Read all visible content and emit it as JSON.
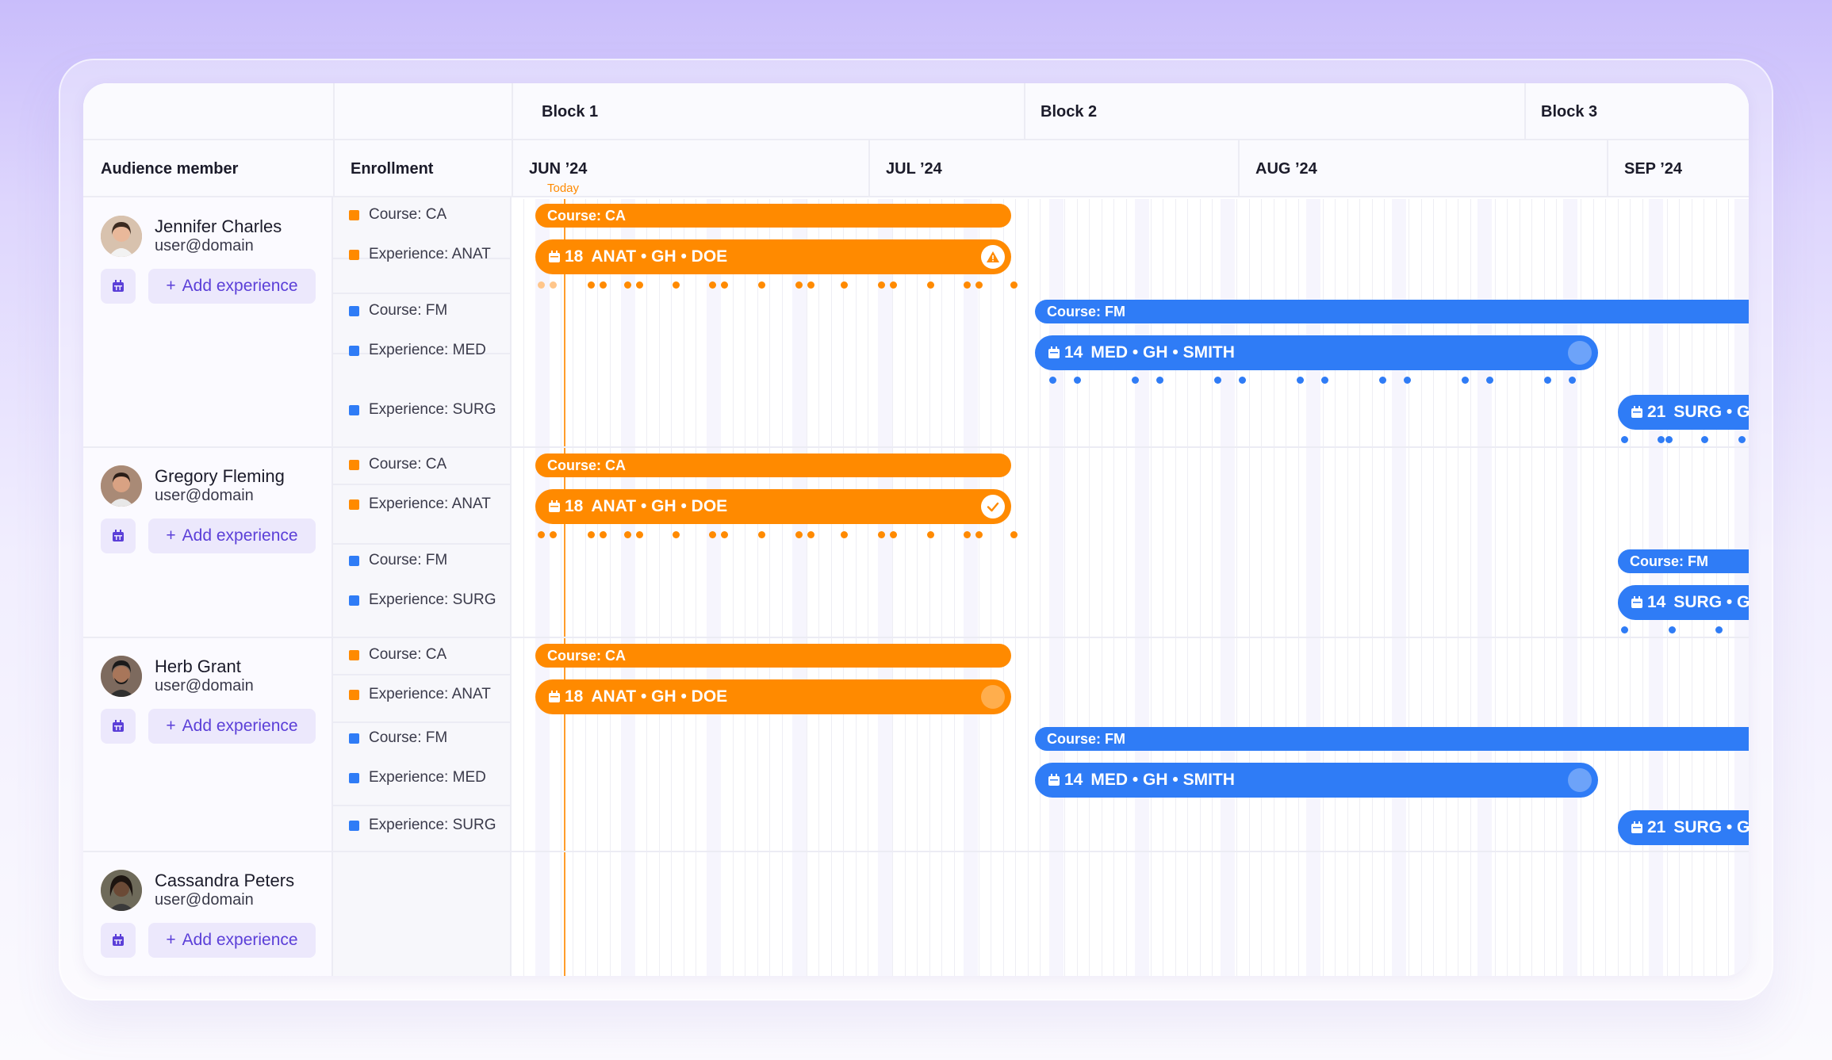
{
  "header": {
    "col_audience": "Audience member",
    "col_enrollment": "Enrollment",
    "blocks": [
      "Block 1",
      "Block 2",
      "Block 3"
    ],
    "months": [
      "JUN ’24",
      "JUL ’24",
      "AUG ’24",
      "SEP ’24"
    ],
    "today_label": "Today"
  },
  "people": [
    {
      "name": "Jennifer Charles",
      "email": "user@domain",
      "add_label": "Add experience",
      "enrollments": [
        {
          "label": "Course: CA",
          "color": "#ff8a00"
        },
        {
          "label": "Experience: ANAT",
          "color": "#ff8a00"
        },
        {
          "label": "Course: FM",
          "color": "#2f7cf6"
        },
        {
          "label": "Experience: MED",
          "color": "#2f7cf6"
        },
        {
          "label": "Experience: SURG",
          "color": "#2f7cf6"
        }
      ]
    },
    {
      "name": "Gregory Fleming",
      "email": "user@domain",
      "add_label": "Add experience",
      "enrollments": [
        {
          "label": "Course: CA",
          "color": "#ff8a00"
        },
        {
          "label": "Experience: ANAT",
          "color": "#ff8a00"
        },
        {
          "label": "Course: FM",
          "color": "#2f7cf6"
        },
        {
          "label": "Experience: SURG",
          "color": "#2f7cf6"
        }
      ]
    },
    {
      "name": "Herb Grant",
      "email": "user@domain",
      "add_label": "Add experience",
      "enrollments": [
        {
          "label": "Course: CA",
          "color": "#ff8a00"
        },
        {
          "label": "Experience: ANAT",
          "color": "#ff8a00"
        },
        {
          "label": "Course: FM",
          "color": "#2f7cf6"
        },
        {
          "label": "Experience: MED",
          "color": "#2f7cf6"
        },
        {
          "label": "Experience: SURG",
          "color": "#2f7cf6"
        }
      ]
    },
    {
      "name": "Cassandra Peters",
      "email": "user@domain",
      "add_label": "Add experience",
      "enrollments": []
    }
  ],
  "bars": {
    "course_ca": "Course: CA",
    "course_fm": "Course: FM",
    "anat": {
      "count": "18",
      "label": "ANAT • GH • DOE"
    },
    "med": {
      "count": "14",
      "label": "MED • GH • SMITH"
    },
    "surg14": {
      "count": "14",
      "label": "SURG • G"
    },
    "surg21": {
      "count": "21",
      "label": "SURG • G"
    }
  },
  "status": {
    "jennifer_anat": "warning",
    "gregory_anat": "complete",
    "herb_anat": "pending"
  },
  "colors": {
    "orange": "#ff8a00",
    "blue": "#2f7cf6",
    "accent": "#5b3fd8"
  }
}
